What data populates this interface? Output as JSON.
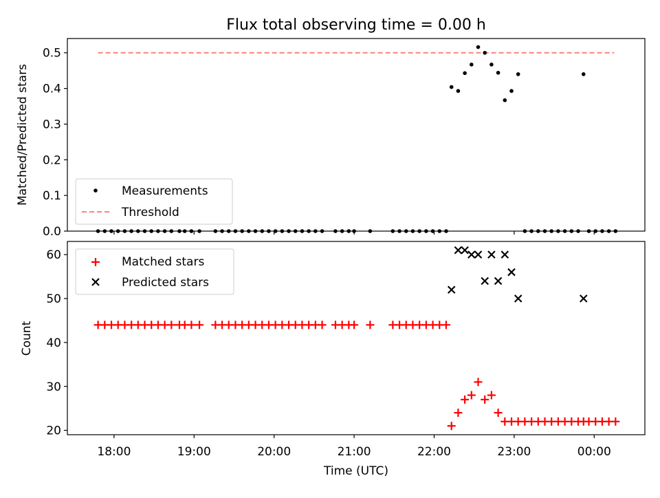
{
  "title": "Flux total observing time = 0.00 h",
  "x_tick_labels": [
    "18:00",
    "19:00",
    "20:00",
    "21:00",
    "22:00",
    "23:00",
    "00:00"
  ],
  "x_label": "Time (UTC)",
  "colors": {
    "measurements": "#000000",
    "threshold": "#ff7f7f",
    "matched": "#ff0000",
    "predicted": "#000000"
  },
  "chart_data": [
    {
      "type": "scatter",
      "ylabel": "Matched/Predicted stars",
      "ylim": [
        0,
        0.54
      ],
      "yticks": [
        0.0,
        0.1,
        0.2,
        0.3,
        0.4,
        0.5
      ],
      "ytick_labels": [
        "0.0",
        "0.1",
        "0.2",
        "0.3",
        "0.4",
        "0.5"
      ],
      "xlim": [
        "17:25",
        "00:38"
      ],
      "legend_position": "lower-left",
      "series": [
        {
          "name": "Measurements",
          "marker": "dot",
          "points": [
            [
              "17:48",
              0
            ],
            [
              "17:53",
              0
            ],
            [
              "17:58",
              0
            ],
            [
              "18:03",
              0
            ],
            [
              "18:08",
              0
            ],
            [
              "18:13",
              0
            ],
            [
              "18:18",
              0
            ],
            [
              "18:23",
              0
            ],
            [
              "18:28",
              0
            ],
            [
              "18:33",
              0
            ],
            [
              "18:38",
              0
            ],
            [
              "18:43",
              0
            ],
            [
              "18:49",
              0
            ],
            [
              "18:53",
              0
            ],
            [
              "18:58",
              0
            ],
            [
              "19:04",
              0
            ],
            [
              "19:16",
              0
            ],
            [
              "19:21",
              0
            ],
            [
              "19:26",
              0
            ],
            [
              "19:31",
              0
            ],
            [
              "19:36",
              0
            ],
            [
              "19:41",
              0
            ],
            [
              "19:46",
              0
            ],
            [
              "19:51",
              0
            ],
            [
              "19:56",
              0
            ],
            [
              "20:01",
              0
            ],
            [
              "20:06",
              0
            ],
            [
              "20:11",
              0
            ],
            [
              "20:16",
              0
            ],
            [
              "20:21",
              0
            ],
            [
              "20:26",
              0
            ],
            [
              "20:31",
              0
            ],
            [
              "20:36",
              0
            ],
            [
              "20:46",
              0
            ],
            [
              "20:51",
              0
            ],
            [
              "20:56",
              0
            ],
            [
              "21:00",
              0
            ],
            [
              "21:12",
              0
            ],
            [
              "21:29",
              0
            ],
            [
              "21:34",
              0
            ],
            [
              "21:39",
              0
            ],
            [
              "21:44",
              0
            ],
            [
              "21:49",
              0
            ],
            [
              "21:54",
              0
            ],
            [
              "21:59",
              0
            ],
            [
              "22:04",
              0
            ],
            [
              "22:09",
              0
            ],
            [
              "22:13",
              0.404
            ],
            [
              "22:18",
              0.393
            ],
            [
              "22:23",
              0.443
            ],
            [
              "22:28",
              0.467
            ],
            [
              "22:33",
              0.516
            ],
            [
              "22:38",
              0.5
            ],
            [
              "22:43",
              0.467
            ],
            [
              "22:48",
              0.444
            ],
            [
              "22:53",
              0.367
            ],
            [
              "22:58",
              0.393
            ],
            [
              "23:03",
              0.44
            ],
            [
              "23:08",
              0
            ],
            [
              "23:13",
              0
            ],
            [
              "23:18",
              0
            ],
            [
              "23:23",
              0
            ],
            [
              "23:28",
              0
            ],
            [
              "23:33",
              0
            ],
            [
              "23:38",
              0
            ],
            [
              "23:43",
              0
            ],
            [
              "23:48",
              0
            ],
            [
              "23:52",
              0.44
            ],
            [
              "23:56",
              0
            ],
            [
              "00:01",
              0
            ],
            [
              "00:06",
              0
            ],
            [
              "00:11",
              0
            ],
            [
              "00:16",
              0
            ]
          ]
        },
        {
          "name": "Threshold",
          "marker": "dashed-line",
          "points": [
            [
              "17:48",
              0.5
            ],
            [
              "00:15",
              0.5
            ]
          ]
        }
      ]
    },
    {
      "type": "scatter",
      "ylabel": "Count",
      "ylim": [
        19,
        63
      ],
      "yticks": [
        20,
        30,
        40,
        50,
        60
      ],
      "ytick_labels": [
        "20",
        "30",
        "40",
        "50",
        "60"
      ],
      "xlim": [
        "17:25",
        "00:38"
      ],
      "legend_position": "upper-left",
      "series": [
        {
          "name": "Matched stars",
          "marker": "plus",
          "points": [
            [
              "17:48",
              44
            ],
            [
              "17:53",
              44
            ],
            [
              "17:58",
              44
            ],
            [
              "18:03",
              44
            ],
            [
              "18:08",
              44
            ],
            [
              "18:13",
              44
            ],
            [
              "18:18",
              44
            ],
            [
              "18:23",
              44
            ],
            [
              "18:28",
              44
            ],
            [
              "18:33",
              44
            ],
            [
              "18:38",
              44
            ],
            [
              "18:43",
              44
            ],
            [
              "18:49",
              44
            ],
            [
              "18:53",
              44
            ],
            [
              "18:58",
              44
            ],
            [
              "19:04",
              44
            ],
            [
              "19:16",
              44
            ],
            [
              "19:21",
              44
            ],
            [
              "19:26",
              44
            ],
            [
              "19:31",
              44
            ],
            [
              "19:36",
              44
            ],
            [
              "19:41",
              44
            ],
            [
              "19:46",
              44
            ],
            [
              "19:51",
              44
            ],
            [
              "19:56",
              44
            ],
            [
              "20:01",
              44
            ],
            [
              "20:06",
              44
            ],
            [
              "20:11",
              44
            ],
            [
              "20:16",
              44
            ],
            [
              "20:21",
              44
            ],
            [
              "20:26",
              44
            ],
            [
              "20:31",
              44
            ],
            [
              "20:36",
              44
            ],
            [
              "20:46",
              44
            ],
            [
              "20:51",
              44
            ],
            [
              "20:56",
              44
            ],
            [
              "21:00",
              44
            ],
            [
              "21:12",
              44
            ],
            [
              "21:29",
              44
            ],
            [
              "21:34",
              44
            ],
            [
              "21:39",
              44
            ],
            [
              "21:44",
              44
            ],
            [
              "21:49",
              44
            ],
            [
              "21:54",
              44
            ],
            [
              "21:59",
              44
            ],
            [
              "22:04",
              44
            ],
            [
              "22:09",
              44
            ],
            [
              "22:13",
              21
            ],
            [
              "22:18",
              24
            ],
            [
              "22:23",
              27
            ],
            [
              "22:28",
              28
            ],
            [
              "22:33",
              31
            ],
            [
              "22:38",
              27
            ],
            [
              "22:43",
              28
            ],
            [
              "22:48",
              24
            ],
            [
              "22:53",
              22
            ],
            [
              "22:58",
              22
            ],
            [
              "23:03",
              22
            ],
            [
              "23:08",
              22
            ],
            [
              "23:13",
              22
            ],
            [
              "23:18",
              22
            ],
            [
              "23:23",
              22
            ],
            [
              "23:28",
              22
            ],
            [
              "23:33",
              22
            ],
            [
              "23:38",
              22
            ],
            [
              "23:43",
              22
            ],
            [
              "23:48",
              22
            ],
            [
              "23:52",
              22
            ],
            [
              "23:56",
              22
            ],
            [
              "00:01",
              22
            ],
            [
              "00:06",
              22
            ],
            [
              "00:11",
              22
            ],
            [
              "00:16",
              22
            ]
          ]
        },
        {
          "name": "Predicted stars",
          "marker": "x",
          "points": [
            [
              "22:13",
              52
            ],
            [
              "22:18",
              61
            ],
            [
              "22:23",
              61
            ],
            [
              "22:28",
              60
            ],
            [
              "22:33",
              60
            ],
            [
              "22:38",
              54
            ],
            [
              "22:43",
              60
            ],
            [
              "22:48",
              54
            ],
            [
              "22:53",
              60
            ],
            [
              "22:58",
              56
            ],
            [
              "23:03",
              50
            ],
            [
              "23:52",
              50
            ]
          ]
        }
      ]
    }
  ]
}
